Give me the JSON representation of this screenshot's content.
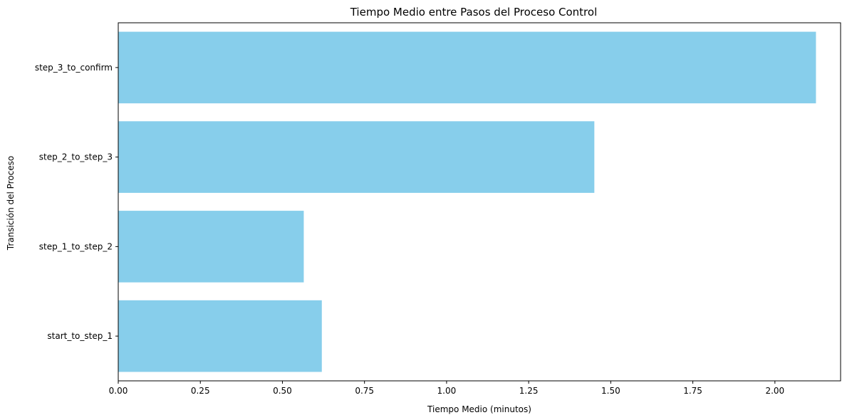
{
  "chart_data": {
    "type": "bar",
    "orientation": "horizontal",
    "title": "Tiempo Medio entre Pasos del Proceso Control",
    "xlabel": "Tiempo Medio (minutos)",
    "ylabel": "Transición del Proceso",
    "categories": [
      "start_to_step_1",
      "step_1_to_step_2",
      "step_2_to_step_3",
      "step_3_to_confirm"
    ],
    "values": [
      0.62,
      0.565,
      1.45,
      2.125
    ],
    "xlim": [
      0,
      2.2
    ],
    "xticks": [
      0.0,
      0.25,
      0.5,
      0.75,
      1.0,
      1.25,
      1.5,
      1.75,
      2.0
    ],
    "xtick_labels": [
      "0.00",
      "0.25",
      "0.50",
      "0.75",
      "1.00",
      "1.25",
      "1.50",
      "1.75",
      "2.00"
    ],
    "grid": false,
    "bar_color": "#87CEEB"
  }
}
